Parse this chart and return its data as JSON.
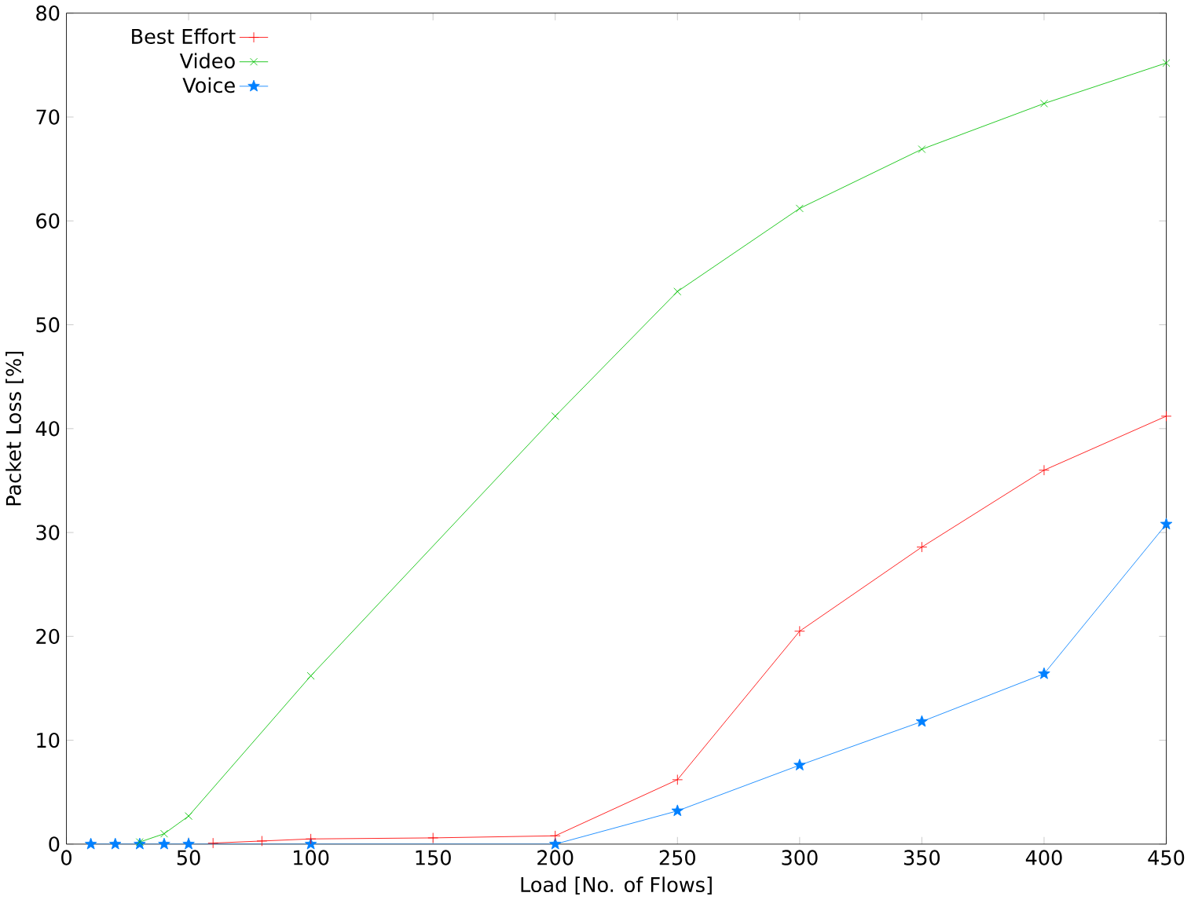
{
  "chart_data": {
    "type": "line",
    "xlabel": "Load [No. of Flows]",
    "ylabel": "Packet Loss [%]",
    "xlim": [
      0,
      450
    ],
    "ylim": [
      0,
      80
    ],
    "xticks": [
      0,
      50,
      100,
      150,
      200,
      250,
      300,
      350,
      400,
      450
    ],
    "yticks": [
      0,
      10,
      20,
      30,
      40,
      50,
      60,
      70,
      80
    ],
    "legend": "top left",
    "grid": false,
    "line_style": "solid",
    "series": [
      {
        "name": "Best Effort",
        "color": "#ff0000",
        "marker": "plus",
        "x": [
          60,
          80,
          100,
          150,
          200,
          250,
          300,
          350,
          400,
          450
        ],
        "values": [
          0.1,
          0.3,
          0.5,
          0.6,
          0.8,
          6.2,
          20.5,
          28.6,
          36,
          41.2
        ]
      },
      {
        "name": "Video",
        "color": "#00c000",
        "marker": "cross",
        "x": [
          30,
          40,
          50,
          100,
          200,
          250,
          300,
          350,
          400,
          450
        ],
        "values": [
          0.2,
          1,
          2.7,
          16.2,
          41.2,
          53.2,
          61.2,
          66.9,
          71.3,
          75.2
        ]
      },
      {
        "name": "Voice",
        "color": "#0080ff",
        "marker": "star",
        "x": [
          10,
          20,
          30,
          40,
          50,
          100,
          200,
          250,
          300,
          350,
          400,
          450
        ],
        "values": [
          0,
          0,
          0,
          0,
          0,
          0,
          0,
          3.2,
          7.6,
          11.8,
          16.4,
          30.8
        ]
      }
    ]
  }
}
